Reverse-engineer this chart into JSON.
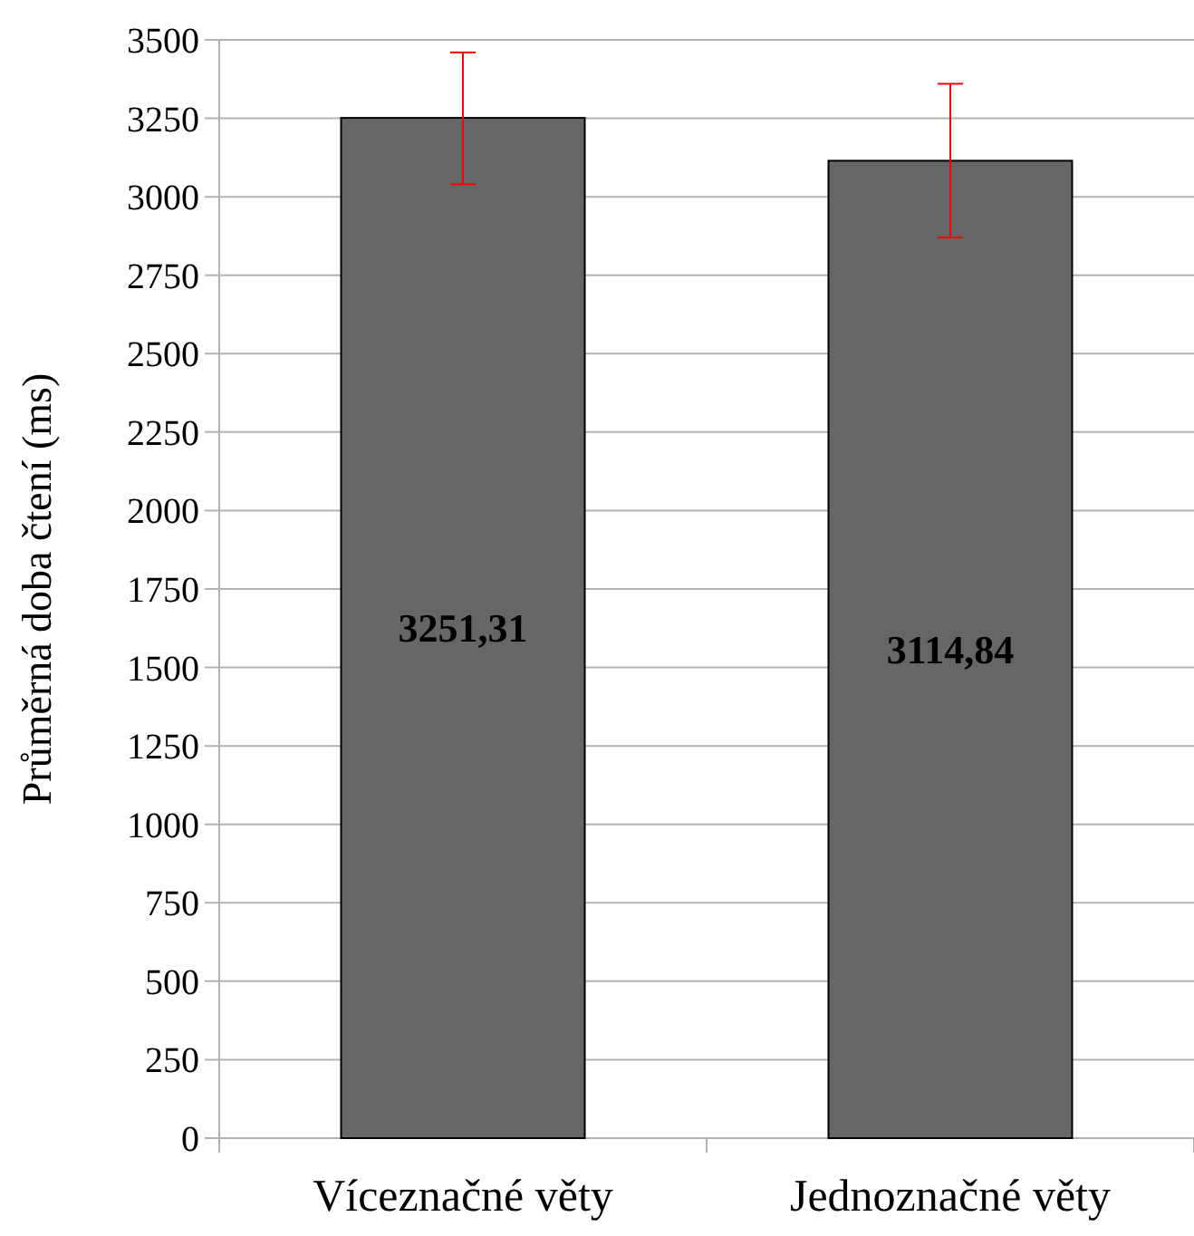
{
  "chart_data": {
    "type": "bar",
    "ylabel": "Průměrná doba čtení (ms)",
    "categories": [
      "Víceznačné věty",
      "Jednoznačné věty"
    ],
    "values": [
      3251.31,
      3114.84
    ],
    "color": "#666666",
    "errors": [
      [
        3040,
        3460
      ],
      [
        2870,
        3360
      ]
    ],
    "ylim": [
      0,
      3500
    ],
    "yticks": [
      0,
      250,
      500,
      750,
      1000,
      1250,
      1500,
      1750,
      2000,
      2250,
      2500,
      2750,
      3000,
      3250,
      3500
    ],
    "grid": "y",
    "data_labels": true,
    "value_labels": [
      "3251,31",
      "3114,84"
    ]
  }
}
